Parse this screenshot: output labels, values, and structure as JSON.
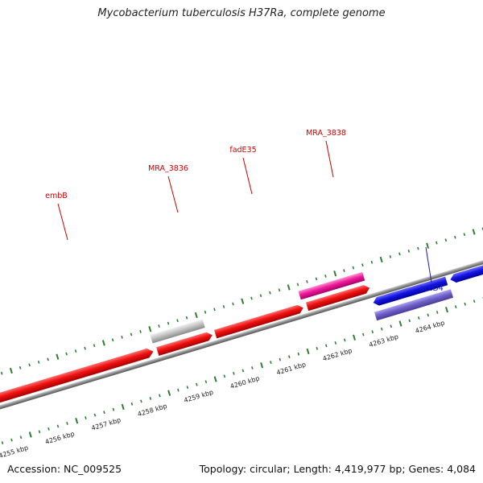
{
  "title": "Mycobacterium tuberculosis H37Ra, complete genome",
  "footer": {
    "accession": "Accession: NC_009525",
    "summary": "Topology: circular; Length: 4,419,977 bp; Genes: 4,084"
  },
  "colors": {
    "backbone": "#8a8a8a",
    "ticks": "#2e7d32",
    "forward_gene": "#ee1111",
    "rna_feature": "#ee1a9a",
    "pseudo_gene": "#bbbbbb",
    "reverse_gene": "#1515e0",
    "reverse_feature": "#7060c8",
    "forward_label": "#cc0000",
    "reverse_label": "#1a1ad0",
    "coordinate_label": "#222222"
  },
  "coordinate_labels": [
    "4255 kbp",
    "4256 kbp",
    "4257 kbp",
    "4258 kbp",
    "4259 kbp",
    "4260 kbp",
    "4261 kbp",
    "4262 kbp",
    "4263 kbp",
    "4264 kbp"
  ],
  "gene_labels": [
    {
      "text": "embB",
      "strand": "forward"
    },
    {
      "text": "MRA_3836",
      "strand": "forward"
    },
    {
      "text": "fadE35",
      "strand": "forward"
    },
    {
      "text": "MRA_3838",
      "strand": "forward"
    },
    {
      "text": "accD4",
      "strand": "reverse"
    }
  ]
}
